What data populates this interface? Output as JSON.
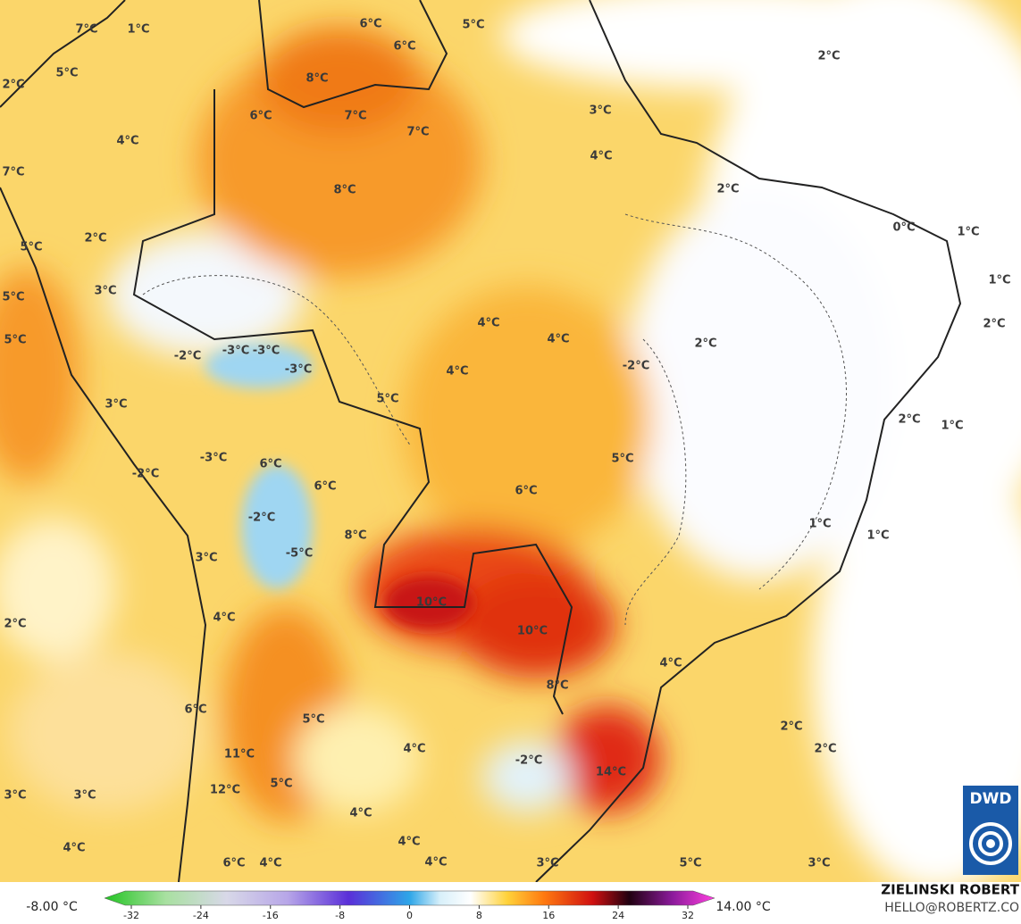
{
  "labels": [
    "7°C",
    "1°C",
    "6°C",
    "6°C",
    "5°C",
    "2°C",
    "5°C",
    "2°C",
    "8°C",
    "6°C",
    "7°C",
    "3°C",
    "7°C",
    "4°C",
    "4°C",
    "7°C",
    "8°C",
    "2°C",
    "0°C",
    "1°C",
    "2°C",
    "5°C",
    "3°C",
    "1°C",
    "5°C",
    "2°C",
    "4°C",
    "4°C",
    "5°C",
    "2°C",
    "-3°C",
    "-3°C",
    "-2°C",
    "-3°C",
    "4°C",
    "-2°C",
    "5°C",
    "3°C",
    "2°C",
    "1°C",
    "-3°C",
    "5°C",
    "6°C",
    "-2°C",
    "6°C",
    "6°C",
    "-2°C",
    "1°C",
    "8°C",
    "1°C",
    "-5°C",
    "3°C",
    "10°C",
    "4°C",
    "2°C",
    "10°C",
    "4°C",
    "8°C",
    "6°C",
    "5°C",
    "2°C",
    "4°C",
    "2°C",
    "11°C",
    "-2°C",
    "14°C",
    "5°C",
    "12°C",
    "3°C",
    "3°C",
    "4°C",
    "4°C",
    "4°C",
    "6°C",
    "4°C",
    "4°C",
    "3°C",
    "5°C",
    "3°C"
  ],
  "colorbar": {
    "min_label": "-8.00 °C",
    "max_label": "14.00 °C",
    "ticks": [
      -32,
      -24,
      -16,
      -8,
      0,
      8,
      16,
      24,
      32
    ]
  },
  "credit": {
    "name": "ZIELINSKI ROBERT",
    "email": "HELLO@ROBERTZ.CO",
    "logo": "DWD"
  }
}
